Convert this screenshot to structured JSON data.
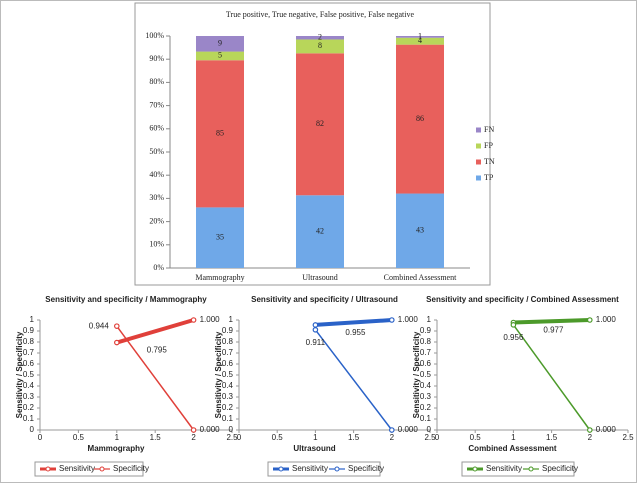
{
  "chart_data": [
    {
      "type": "bar",
      "stack": "percent",
      "title": "True positive, True negative, False positive, False negative",
      "categories": [
        "Mammography",
        "Ultrasound",
        "Combined Assessment"
      ],
      "series": [
        {
          "name": "TP",
          "color": "#6fa8e8",
          "values": [
            35,
            42,
            43
          ]
        },
        {
          "name": "TN",
          "color": "#e8605c",
          "values": [
            85,
            82,
            86
          ]
        },
        {
          "name": "FP",
          "color": "#b8d65a",
          "values": [
            5,
            8,
            4
          ]
        },
        {
          "name": "FN",
          "color": "#9a86c8",
          "values": [
            9,
            2,
            1
          ]
        }
      ],
      "ylim": [
        0,
        100
      ],
      "yticks": [
        {
          "value": 0,
          "label": "0%"
        },
        {
          "value": 10,
          "label": "10%"
        },
        {
          "value": 20,
          "label": "20%"
        },
        {
          "value": 30,
          "label": "30%"
        },
        {
          "value": 40,
          "label": "40%"
        },
        {
          "value": 50,
          "label": "50%"
        },
        {
          "value": 60,
          "label": "60%"
        },
        {
          "value": 70,
          "label": "70%"
        },
        {
          "value": 80,
          "label": "80%"
        },
        {
          "value": 90,
          "label": "90%"
        },
        {
          "value": 100,
          "label": "100%"
        }
      ],
      "legend": "right"
    },
    {
      "type": "line",
      "title": "Sensitivity and specificity / Mammography",
      "xlabel": "Mammography",
      "ylabel": "Sensitivity / Specificity",
      "xlim": [
        0,
        2.5
      ],
      "xticks": [
        0,
        0.5,
        1,
        1.5,
        2,
        2.5
      ],
      "ylim": [
        0,
        1
      ],
      "yticks": [
        0,
        0.1,
        0.2,
        0.3,
        0.4,
        0.5,
        0.6,
        0.7,
        0.8,
        0.9,
        1
      ],
      "series": [
        {
          "name": "Sensitivity",
          "color": "#e0403a",
          "x": [
            1,
            2
          ],
          "values": [
            0.795,
            1.0
          ],
          "value_labels": [
            "0.795",
            "1.000"
          ]
        },
        {
          "name": "Specificity",
          "color": "#e0403a",
          "x": [
            1,
            2
          ],
          "values": [
            0.944,
            0.0
          ],
          "value_labels": [
            "0.944",
            "0.000"
          ]
        }
      ],
      "legend": "bottom"
    },
    {
      "type": "line",
      "title": "Sensitivity and specificity / Ultrasound",
      "xlabel": "Ultrasound",
      "ylabel": "Sensitivity / Specificity",
      "xlim": [
        0,
        2.5
      ],
      "xticks": [
        0,
        0.5,
        1,
        1.5,
        2,
        2.5
      ],
      "ylim": [
        0,
        1
      ],
      "yticks": [
        0,
        0.1,
        0.2,
        0.3,
        0.4,
        0.5,
        0.6,
        0.7,
        0.8,
        0.9,
        1
      ],
      "series": [
        {
          "name": "Sensitivity",
          "color": "#2a62c8",
          "x": [
            1,
            2
          ],
          "values": [
            0.955,
            1.0
          ],
          "value_labels": [
            "0.955",
            "1.000"
          ]
        },
        {
          "name": "Specificity",
          "color": "#2a62c8",
          "x": [
            1,
            2
          ],
          "values": [
            0.911,
            0.0
          ],
          "value_labels": [
            "0.911",
            "0.000"
          ]
        }
      ],
      "legend": "bottom"
    },
    {
      "type": "line",
      "title": "Sensitivity and specificity / Combined Assessment",
      "xlabel": "Combined Assessment",
      "ylabel": "Sensitivity / Specificity",
      "xlim": [
        0,
        2.5
      ],
      "xticks": [
        0,
        0.5,
        1,
        1.5,
        2,
        2.5
      ],
      "ylim": [
        0,
        1
      ],
      "yticks": [
        0,
        0.1,
        0.2,
        0.3,
        0.4,
        0.5,
        0.6,
        0.7,
        0.8,
        0.9,
        1
      ],
      "series": [
        {
          "name": "Sensitivity",
          "color": "#4c9a2a",
          "x": [
            1,
            2
          ],
          "values": [
            0.977,
            1.0
          ],
          "value_labels": [
            "0.977",
            "1.000"
          ]
        },
        {
          "name": "Specificity",
          "color": "#4c9a2a",
          "x": [
            1,
            2
          ],
          "values": [
            0.956,
            0.0
          ],
          "value_labels": [
            "0.956",
            "0.000"
          ]
        }
      ],
      "legend": "bottom"
    }
  ]
}
